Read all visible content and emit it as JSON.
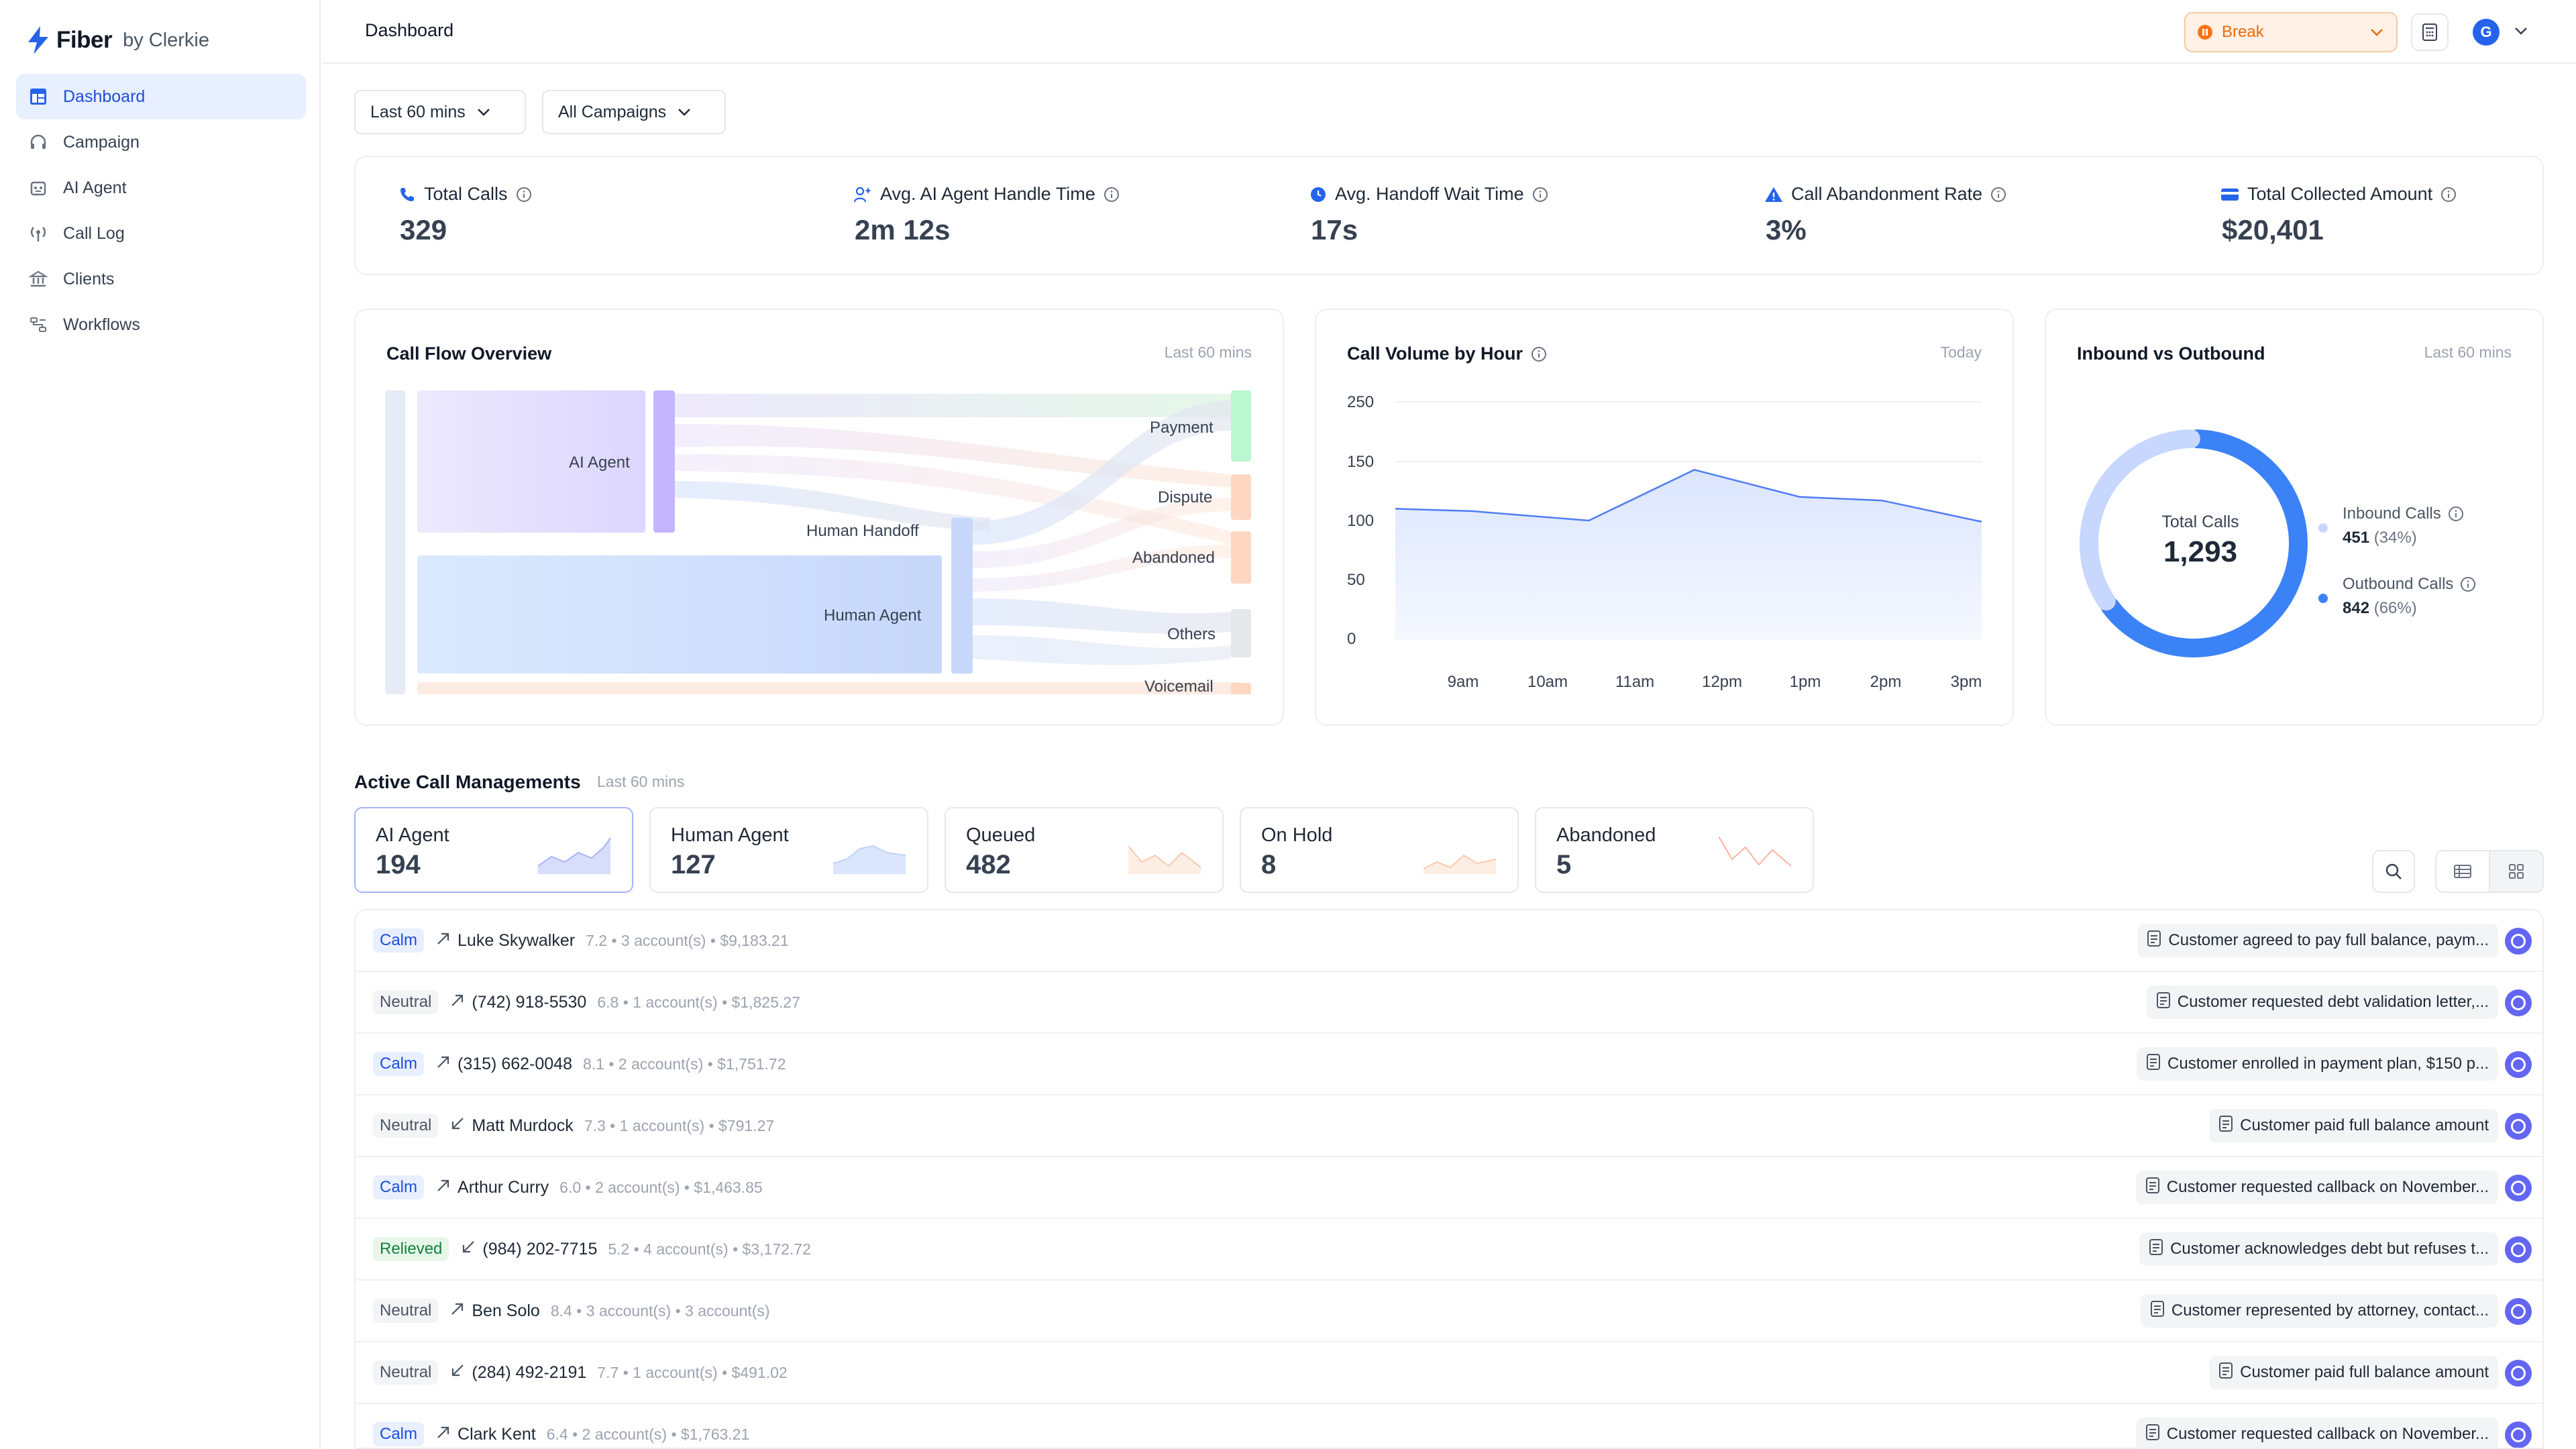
{
  "brand": {
    "name": "Fiber",
    "by": "by Clerkie",
    "accent": "#2563eb"
  },
  "sidebar": {
    "items": [
      {
        "label": "Dashboard",
        "icon": "dashboard-icon",
        "active": true
      },
      {
        "label": "Campaign",
        "icon": "headset-icon"
      },
      {
        "label": "AI Agent",
        "icon": "robot-icon"
      },
      {
        "label": "Call Log",
        "icon": "broadcast-icon"
      },
      {
        "label": "Clients",
        "icon": "bank-icon"
      },
      {
        "label": "Workflows",
        "icon": "workflow-icon"
      }
    ]
  },
  "header": {
    "title": "Dashboard",
    "status": "Break",
    "avatar_initial": "G"
  },
  "filters": {
    "time_range": "Last 60 mins",
    "campaign": "All Campaigns"
  },
  "stats": [
    {
      "label": "Total Calls",
      "value": "329",
      "icon": "phone-icon"
    },
    {
      "label": "Avg. AI Agent Handle Time",
      "value": "2m 12s",
      "icon": "user-sparkle-icon"
    },
    {
      "label": "Avg. Handoff Wait Time",
      "value": "17s",
      "icon": "clock-icon"
    },
    {
      "label": "Call Abandonment Rate",
      "value": "3%",
      "icon": "warning-icon"
    },
    {
      "label": "Total Collected Amount",
      "value": "$20,401",
      "icon": "card-icon"
    }
  ],
  "call_flow": {
    "title": "Call Flow Overview",
    "subtitle": "Last 60 mins",
    "nodes": {
      "ai_agent": "AI Agent",
      "human_handoff": "Human Handoff",
      "human_agent": "Human Agent",
      "payment": "Payment",
      "dispute": "Dispute",
      "abandoned": "Abandoned",
      "others": "Others",
      "voicemail": "Voicemail"
    }
  },
  "volume": {
    "title": "Call Volume by Hour",
    "subtitle": "Today"
  },
  "inout": {
    "title": "Inbound vs Outbound",
    "subtitle": "Last 60 mins",
    "center_label": "Total Calls",
    "center_value": "1,293",
    "inbound_label": "Inbound Calls",
    "inbound_value": "451",
    "inbound_pct": "(34%)",
    "outbound_label": "Outbound Calls",
    "outbound_value": "842",
    "outbound_pct": "(66%)"
  },
  "chart_data": [
    {
      "type": "line",
      "x": [
        "9am",
        "10am",
        "11am",
        "12pm",
        "1pm",
        "2pm",
        "3pm"
      ],
      "series": [
        {
          "values": [
            110,
            108,
            100,
            143,
            120,
            117,
            99
          ],
          "points_x": [
            0,
            0.13,
            0.33,
            0.51,
            0.69,
            0.83,
            1.0
          ]
        }
      ],
      "y_ticks": [
        0,
        50,
        100,
        150,
        250
      ],
      "ylim": [
        0,
        250
      ],
      "grid": true
    },
    {
      "type": "pie",
      "categories": [
        "Inbound Calls",
        "Outbound Calls"
      ],
      "values": [
        451,
        842
      ],
      "colors": [
        "#c7d7fe",
        "#3b82f6"
      ]
    }
  ],
  "acm": {
    "title": "Active Call Managements",
    "subtitle": "Last 60 mins",
    "cards": [
      {
        "label": "AI Agent",
        "value": "194",
        "color": "#a5b4fc"
      },
      {
        "label": "Human Agent",
        "value": "127",
        "color": "#bfd3fb"
      },
      {
        "label": "Queued",
        "value": "482",
        "color": "#fbc9ad"
      },
      {
        "label": "On Hold",
        "value": "8",
        "color": "#fbc9ad"
      },
      {
        "label": "Abandoned",
        "value": "5",
        "color": "#f9b5a0"
      }
    ]
  },
  "calls": [
    {
      "sentiment": "Calm",
      "dir": "out",
      "name": "Luke Skywalker",
      "meta": "7.2 • 3 account(s) • $9,183.21",
      "note": "Customer agreed to pay full balance, paym..."
    },
    {
      "sentiment": "Neutral",
      "dir": "out",
      "name": "(742) 918-5530",
      "meta": "6.8 • 1 account(s) • $1,825.27",
      "note": "Customer requested debt validation letter,..."
    },
    {
      "sentiment": "Calm",
      "dir": "out",
      "name": "(315) 662-0048",
      "meta": "8.1 • 2 account(s) • $1,751.72",
      "note": "Customer enrolled in payment plan, $150 p..."
    },
    {
      "sentiment": "Neutral",
      "dir": "in",
      "name": "Matt Murdock",
      "meta": "7.3 • 1 account(s) • $791.27",
      "note": "Customer paid full balance amount"
    },
    {
      "sentiment": "Calm",
      "dir": "out",
      "name": "Arthur Curry",
      "meta": "6.0 • 2 account(s) • $1,463.85",
      "note": "Customer requested callback on November..."
    },
    {
      "sentiment": "Relieved",
      "dir": "in",
      "name": "(984) 202-7715",
      "meta": "5.2 • 4 account(s) • $3,172.72",
      "note": "Customer acknowledges debt but refuses t..."
    },
    {
      "sentiment": "Neutral",
      "dir": "out",
      "name": "Ben Solo",
      "meta": "8.4 • 3 account(s) • 3 account(s)",
      "note": "Customer represented by attorney, contact..."
    },
    {
      "sentiment": "Neutral",
      "dir": "in",
      "name": "(284) 492-2191",
      "meta": "7.7 • 1 account(s) • $491.02",
      "note": "Customer paid full balance amount"
    },
    {
      "sentiment": "Calm",
      "dir": "out",
      "name": "Clark Kent",
      "meta": "6.4 • 2 account(s) • $1,763.21",
      "note": "Customer requested callback on November..."
    }
  ]
}
